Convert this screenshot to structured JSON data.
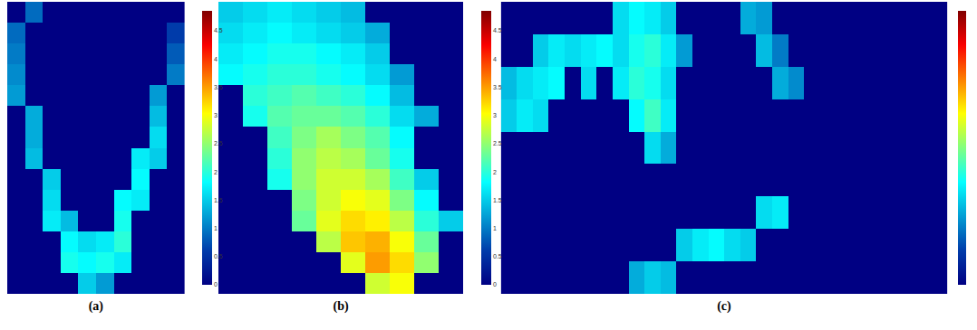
{
  "chart_data": [
    {
      "type": "heatmap",
      "xlabel": "(a)",
      "tick_labels": false,
      "colorbar": {
        "range": [
          0,
          4.85
        ],
        "ticks": [
          0,
          0.5,
          1,
          1.5,
          2,
          2.5,
          3,
          3.5,
          4,
          4.5
        ]
      },
      "cells": [
        [
          0,
          0.9,
          0,
          0,
          0,
          0,
          0,
          0,
          0,
          0
        ],
        [
          0.9,
          0,
          0,
          0,
          0,
          0,
          0,
          0,
          0,
          0.6
        ],
        [
          1.0,
          0,
          0,
          0,
          0,
          0,
          0,
          0,
          0,
          0.8
        ],
        [
          1.1,
          0,
          0,
          0,
          0,
          0,
          0,
          0,
          0,
          1.0
        ],
        [
          1.2,
          0,
          0,
          0,
          0,
          0,
          0,
          0,
          1.2,
          0
        ],
        [
          0,
          1.3,
          0,
          0,
          0,
          0,
          0,
          0,
          1.4,
          0
        ],
        [
          0,
          1.3,
          0,
          0,
          0,
          0,
          0,
          0,
          1.6,
          0
        ],
        [
          0,
          1.4,
          0,
          0,
          0,
          0,
          0,
          1.7,
          1.5,
          0
        ],
        [
          0,
          0,
          1.5,
          0,
          0,
          0,
          0,
          1.8,
          0,
          0
        ],
        [
          0,
          0,
          1.6,
          0,
          0,
          0,
          1.8,
          1.7,
          0,
          0
        ],
        [
          0,
          0,
          1.7,
          1.4,
          0,
          0,
          1.9,
          0,
          0,
          0
        ],
        [
          0,
          0,
          0,
          1.8,
          1.6,
          1.7,
          2.0,
          0,
          0,
          0
        ],
        [
          0,
          0,
          0,
          1.9,
          1.8,
          1.9,
          1.7,
          0,
          0,
          0
        ],
        [
          0,
          0,
          0,
          0,
          1.5,
          1.2,
          0,
          0,
          0,
          0
        ]
      ]
    },
    {
      "type": "heatmap",
      "xlabel": "(b)",
      "tick_labels": false,
      "colorbar": {
        "range": [
          0,
          4.85
        ],
        "ticks": [
          0,
          0.5,
          1,
          1.5,
          2,
          2.5,
          3,
          3.5,
          4,
          4.5
        ]
      },
      "cells": [
        [
          1.5,
          1.6,
          1.7,
          1.6,
          1.5,
          1.4,
          0,
          0,
          0,
          0
        ],
        [
          1.6,
          1.7,
          1.8,
          1.7,
          1.6,
          1.5,
          1.3,
          0,
          0,
          0
        ],
        [
          1.7,
          1.8,
          1.9,
          1.9,
          1.8,
          1.7,
          1.5,
          0,
          0,
          0
        ],
        [
          1.8,
          1.9,
          2.0,
          2.0,
          1.9,
          1.8,
          1.6,
          1.2,
          0,
          0
        ],
        [
          0,
          2.0,
          2.1,
          2.2,
          2.1,
          2.0,
          1.8,
          1.4,
          0,
          0
        ],
        [
          0,
          1.9,
          2.2,
          2.3,
          2.3,
          2.2,
          2.0,
          1.6,
          1.3,
          0
        ],
        [
          0,
          0,
          2.1,
          2.4,
          2.6,
          2.4,
          2.2,
          1.8,
          0,
          0
        ],
        [
          0,
          0,
          2.0,
          2.5,
          2.7,
          2.6,
          2.3,
          1.9,
          0,
          0
        ],
        [
          0,
          0,
          1.9,
          2.5,
          2.8,
          2.8,
          2.6,
          2.1,
          1.5,
          0
        ],
        [
          0,
          0,
          0,
          2.4,
          2.8,
          3.0,
          2.9,
          2.4,
          1.8,
          0
        ],
        [
          0,
          0,
          0,
          2.3,
          2.9,
          3.2,
          3.1,
          2.7,
          2.0,
          1.5
        ],
        [
          0,
          0,
          0,
          0,
          2.7,
          3.3,
          3.4,
          3.0,
          2.3,
          0
        ],
        [
          0,
          0,
          0,
          0,
          0,
          2.9,
          3.5,
          3.2,
          2.5,
          0
        ],
        [
          0,
          0,
          0,
          0,
          0,
          0,
          2.8,
          3.0,
          0,
          0
        ]
      ]
    },
    {
      "type": "heatmap",
      "xlabel": "(c)",
      "tick_labels": false,
      "colorbar": {
        "range": [
          0,
          4.85
        ]
      },
      "cells": [
        [
          0,
          0,
          0,
          0,
          0,
          0,
          0,
          1.6,
          1.8,
          1.7,
          1.5,
          0,
          0,
          0,
          0,
          1.3,
          1.2,
          0,
          0,
          0,
          0,
          0,
          0,
          0,
          0,
          0,
          0,
          0
        ],
        [
          0,
          0,
          1.5,
          1.7,
          1.6,
          1.7,
          1.8,
          1.6,
          1.9,
          2.0,
          1.7,
          1.2,
          0,
          0,
          0,
          0,
          1.4,
          1.0,
          0,
          0,
          0,
          0,
          0,
          0,
          0,
          0,
          0,
          0
        ],
        [
          1.4,
          1.6,
          1.7,
          1.8,
          0,
          1.6,
          0,
          1.7,
          2.0,
          1.9,
          1.6,
          0,
          0,
          0,
          0,
          0,
          0,
          1.3,
          1.1,
          0,
          0,
          0,
          0,
          0,
          0,
          0,
          0,
          0
        ],
        [
          1.5,
          1.7,
          1.6,
          0,
          0,
          0,
          0,
          0,
          1.8,
          2.1,
          1.7,
          0,
          0,
          0,
          0,
          0,
          0,
          0,
          0,
          0,
          0,
          0,
          0,
          0,
          0,
          0,
          0,
          0
        ],
        [
          0,
          0,
          0,
          0,
          0,
          0,
          0,
          0,
          0,
          1.6,
          1.3,
          0,
          0,
          0,
          0,
          0,
          0,
          0,
          0,
          0,
          0,
          0,
          0,
          0,
          0,
          0,
          0,
          0
        ],
        [
          0,
          0,
          0,
          0,
          0,
          0,
          0,
          0,
          0,
          0,
          0,
          0,
          0,
          0,
          0,
          0,
          0,
          0,
          0,
          0,
          0,
          0,
          0,
          0,
          0,
          0,
          0,
          0
        ],
        [
          0,
          0,
          0,
          0,
          0,
          0,
          0,
          0,
          0,
          0,
          0,
          0,
          0,
          0,
          0,
          0,
          1.6,
          1.7,
          0,
          0,
          0,
          0,
          0,
          0,
          0,
          0,
          0,
          0
        ],
        [
          0,
          0,
          0,
          0,
          0,
          0,
          0,
          0,
          0,
          0,
          0,
          1.5,
          1.7,
          1.8,
          1.6,
          1.5,
          0,
          0,
          0,
          0,
          0,
          0,
          0,
          0,
          0,
          0,
          0,
          0
        ],
        [
          0,
          0,
          0,
          0,
          0,
          0,
          0,
          0,
          1.3,
          1.5,
          1.4,
          0,
          0,
          0,
          0,
          0,
          0,
          0,
          0,
          0,
          0,
          0,
          0,
          0,
          0,
          0,
          0,
          0
        ]
      ]
    }
  ]
}
